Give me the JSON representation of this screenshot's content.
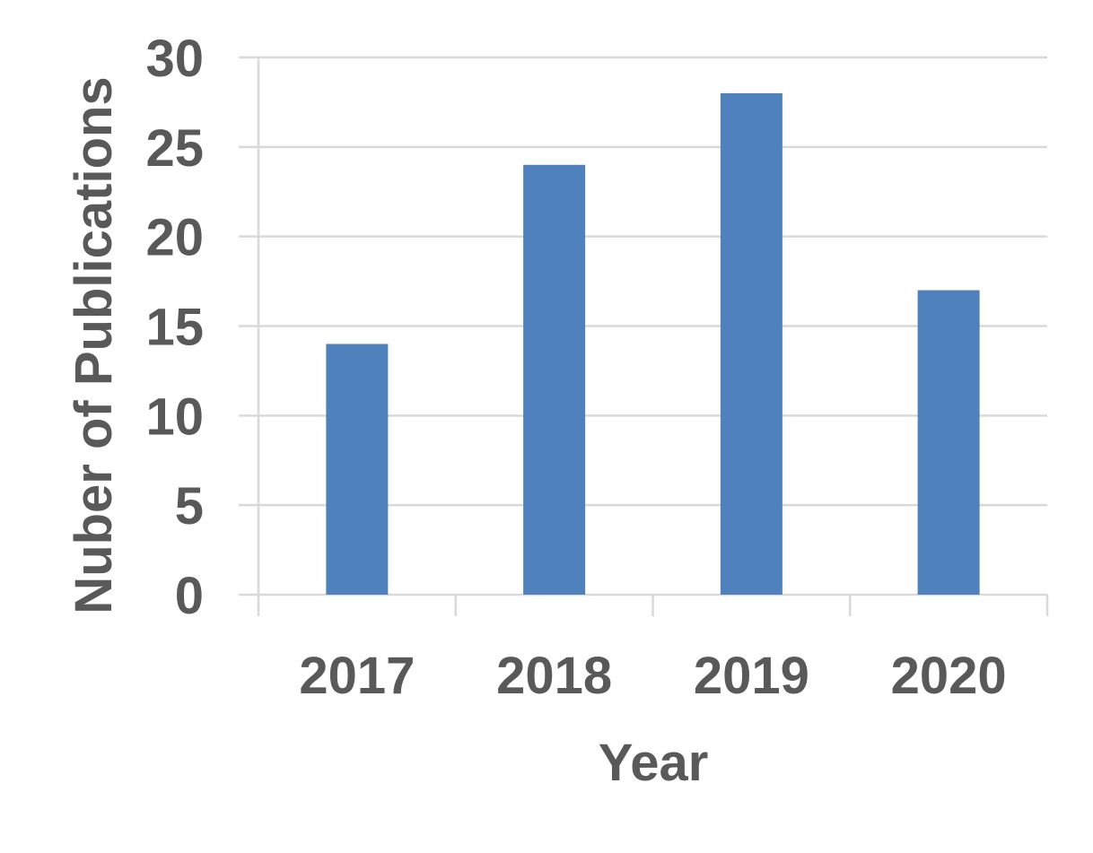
{
  "chart_data": {
    "type": "bar",
    "title": "",
    "xlabel": "Year",
    "ylabel": "Nuber of Publications",
    "categories": [
      "2017",
      "2018",
      "2019",
      "2020"
    ],
    "values": [
      14,
      24,
      28,
      17
    ],
    "ylim": [
      0,
      30
    ],
    "yticks": [
      0,
      5,
      10,
      15,
      20,
      25,
      30
    ],
    "grid": true,
    "legend": "none",
    "bar_color": "#4F81BD",
    "grid_color": "#D9D9D9",
    "text_color": "#595959"
  }
}
